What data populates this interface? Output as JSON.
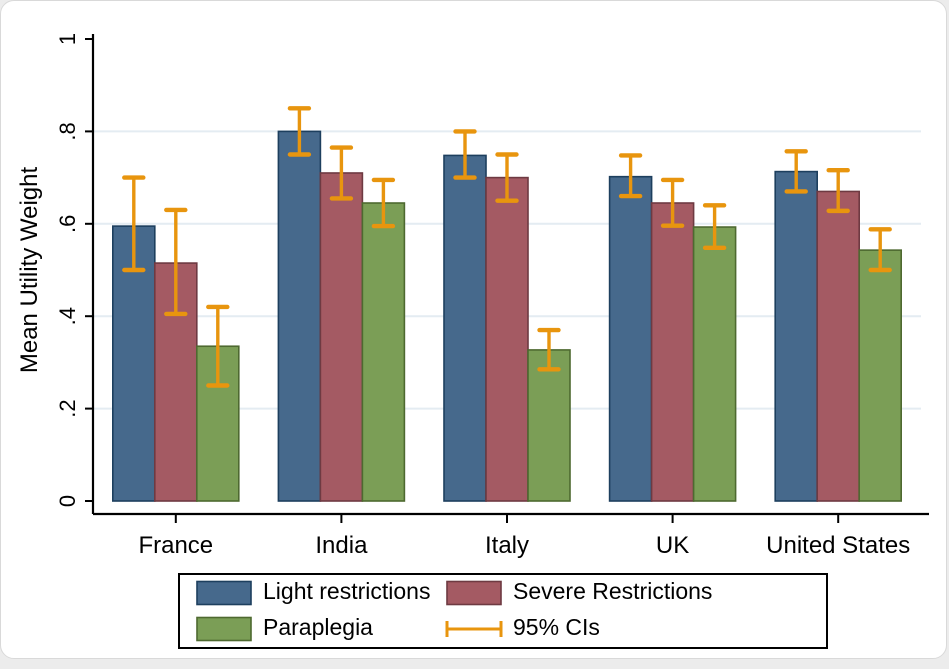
{
  "figure": {
    "page_background": "#ececec",
    "card_background": "#ffffff"
  },
  "chart_data": {
    "type": "bar",
    "title": "",
    "xlabel": "",
    "ylabel": "Mean Utility Weight",
    "ylim": [
      0,
      1
    ],
    "ytick_values": [
      0,
      0.2,
      0.4,
      0.6,
      0.8,
      1
    ],
    "ytick_labels": [
      "0",
      ".2",
      ".4",
      ".6",
      ".8",
      "1"
    ],
    "grid_values": [
      0.2,
      0.4,
      0.6,
      0.8
    ],
    "grid_on": true,
    "gridline_color": "#e4ecf2",
    "categories": [
      "France",
      "India",
      "Italy",
      "UK",
      "United States"
    ],
    "series": [
      {
        "name": "Light restrictions",
        "color": "#46698c",
        "border": "#1d3f5e",
        "values": [
          0.595,
          0.8,
          0.748,
          0.702,
          0.713
        ],
        "ci_low": [
          0.5,
          0.75,
          0.7,
          0.66,
          0.67
        ],
        "ci_high": [
          0.7,
          0.85,
          0.8,
          0.748,
          0.757
        ]
      },
      {
        "name": "Severe Restrictions",
        "color": "#a45a63",
        "border": "#6e3a42",
        "values": [
          0.515,
          0.71,
          0.7,
          0.645,
          0.67
        ],
        "ci_low": [
          0.405,
          0.655,
          0.65,
          0.596,
          0.628
        ],
        "ci_high": [
          0.63,
          0.765,
          0.75,
          0.695,
          0.716
        ]
      },
      {
        "name": "Paraplegia",
        "color": "#7b9e56",
        "border": "#4e6930",
        "values": [
          0.335,
          0.645,
          0.327,
          0.593,
          0.543
        ],
        "ci_low": [
          0.25,
          0.595,
          0.285,
          0.548,
          0.5
        ],
        "ci_high": [
          0.42,
          0.695,
          0.37,
          0.64,
          0.588
        ]
      }
    ],
    "error_bars": {
      "label": "95% CIs",
      "color": "#e8950e"
    },
    "legend_position": "bottom"
  }
}
